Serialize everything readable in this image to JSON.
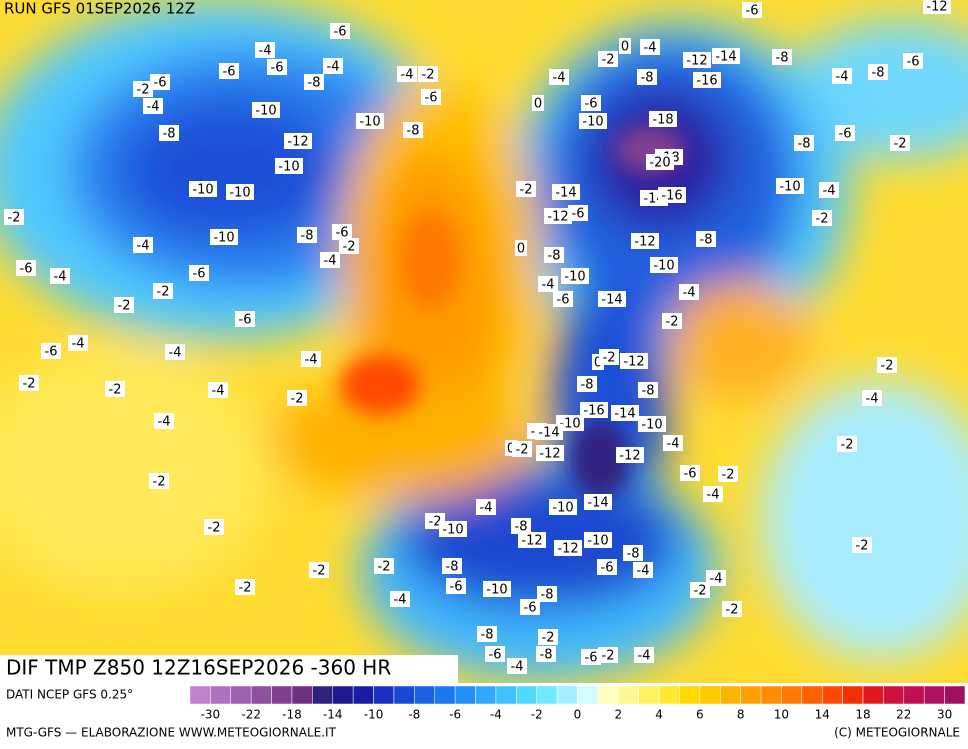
{
  "header": {
    "run": "RUN GFS 01SEP2026 12Z",
    "field": "DIF TMP Z850 12Z16SEP2026 -360 HR"
  },
  "map_labels": [
    "-6",
    "-12",
    "-6",
    "-4",
    "-4",
    "-6",
    "-6",
    "-8",
    "-6",
    "-2",
    "-4",
    "-4",
    "-2",
    "-6",
    "0",
    "-4",
    "-2",
    "-12",
    "-14",
    "-8",
    "-6",
    "-8",
    "-4",
    "-4",
    "-8",
    "-16",
    "-10",
    "-10",
    "-8",
    "-8",
    "-12",
    "0",
    "-6",
    "-10",
    "-18",
    "-6",
    "-8",
    "-2",
    "-10",
    "-18",
    "-20",
    "-2",
    "-14",
    "-14",
    "-16",
    "-10",
    "-10",
    "-10",
    "-4",
    "-2",
    "-12",
    "-6",
    "-2",
    "-10",
    "-8",
    "-6",
    "-2",
    "0",
    "-12",
    "-8",
    "-4",
    "-4",
    "-8",
    "-6",
    "-4",
    "-6",
    "-10",
    "-10",
    "-4",
    "-2",
    "-2",
    "-6",
    "-14",
    "-4",
    "-6",
    "-2",
    "-6",
    "-4",
    "-4",
    "0",
    "-2",
    "-12",
    "-4",
    "-2",
    "-2",
    "-2",
    "-8",
    "-8",
    "-4",
    "-2",
    "-4",
    "-16",
    "-14",
    "-10",
    "-10",
    "-4",
    "-4",
    "-14",
    "0",
    "-2",
    "-12",
    "-12",
    "-4",
    "-2",
    "-6",
    "-2",
    "-4",
    "-2",
    "-4",
    "-10",
    "-14",
    "-2",
    "-10",
    "-8",
    "-12",
    "-12",
    "-10",
    "-2",
    "-2",
    "-8",
    "-2",
    "-2",
    "-8",
    "-6",
    "-4",
    "-4",
    "-2",
    "-6",
    "-10",
    "-8",
    "-2",
    "-4",
    "-6",
    "-2",
    "-8",
    "-6",
    "-4",
    "-8",
    "-6",
    "-2",
    "-4",
    "-2"
  ],
  "legend": {
    "source": "DATI NCEP GFS 0.25°",
    "colors": [
      "#c080d0",
      "#b070c0",
      "#a060b0",
      "#9050a0",
      "#804090",
      "#703080",
      "#302080",
      "#201890",
      "#1a1aa8",
      "#1a30c0",
      "#1a48d0",
      "#1a60e0",
      "#1a78f0",
      "#2090f8",
      "#30a8ff",
      "#40c0ff",
      "#50d8ff",
      "#70e8ff",
      "#a0f0ff",
      "#d0fcff",
      "#ffffc0",
      "#fff890",
      "#fff060",
      "#ffe830",
      "#ffd800",
      "#ffc800",
      "#ffb400",
      "#ffa000",
      "#ff8c00",
      "#ff7800",
      "#ff6000",
      "#ff4800",
      "#f03000",
      "#e01820",
      "#d01040",
      "#c01050",
      "#b01060",
      "#a01060"
    ],
    "labels": [
      "-30",
      "-22",
      "-18",
      "-14",
      "-10",
      "-8",
      "-6",
      "-4",
      "-2",
      "0",
      "2",
      "4",
      "6",
      "8",
      "10",
      "14",
      "18",
      "22",
      "30"
    ]
  },
  "footer": {
    "left": "MTG-GFS — ELABORAZIONE WWW.METEOGIORNALE.IT",
    "right": "(C) METEOGIORNALE"
  }
}
